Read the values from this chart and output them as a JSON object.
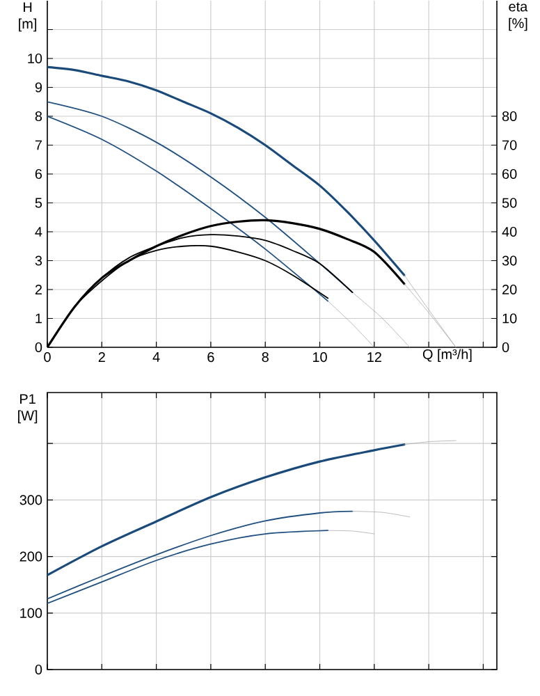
{
  "chart_data": [
    {
      "type": "line",
      "xlabel": "Q [m³/h]",
      "ylabel": "H [m]",
      "y2label": "eta [%]",
      "xlim": [
        0,
        16.5
      ],
      "ylim": [
        0,
        12
      ],
      "y2lim": [
        0,
        120
      ],
      "xticks": [
        0,
        2,
        4,
        6,
        8,
        10,
        12,
        {
          "value": 14,
          "label": null
        },
        {
          "value": 16,
          "label": null
        }
      ],
      "yticks": [
        0,
        1,
        2,
        3,
        4,
        5,
        6,
        7,
        8,
        9,
        10,
        {
          "value": 11,
          "label": null
        }
      ],
      "y2ticks": [
        0,
        10,
        20,
        30,
        40,
        50,
        60,
        70,
        80
      ],
      "grid": true,
      "series": [
        {
          "color": "#1a4a7a",
          "x": [
            0,
            1,
            2,
            3,
            4,
            5,
            6,
            7,
            8,
            9,
            10,
            11,
            12,
            13.1
          ],
          "values": [
            9.7,
            9.6,
            9.4,
            9.2,
            8.9,
            8.5,
            8.1,
            7.6,
            7.0,
            6.3,
            5.6,
            4.7,
            3.7,
            2.5
          ]
        },
        {
          "color": "#1f5080",
          "x": [
            0,
            2,
            4,
            6,
            8,
            10,
            11.2
          ],
          "values": [
            8.5,
            8.0,
            7.1,
            5.9,
            4.5,
            2.9,
            1.9
          ]
        },
        {
          "color": "#1f5080",
          "x": [
            0,
            2,
            4,
            6,
            8,
            10.3
          ],
          "values": [
            8.0,
            7.2,
            6.1,
            4.8,
            3.4,
            1.6
          ]
        },
        {
          "color": "#a8a8a8",
          "x": [
            13.1,
            14,
            15
          ],
          "values": [
            2.5,
            1.3,
            0
          ]
        },
        {
          "color": "#a8a8a8",
          "x": [
            11.2,
            12.3,
            13.3
          ],
          "values": [
            1.9,
            1.0,
            0
          ]
        },
        {
          "color": "#a8a8a8",
          "x": [
            10.3,
            11.2,
            12
          ],
          "values": [
            1.6,
            0.8,
            0
          ]
        },
        {
          "color": "#000000",
          "axis": "y2",
          "x": [
            0,
            1,
            2,
            3,
            4,
            5,
            6,
            7,
            8,
            9,
            10,
            11,
            12,
            13.1
          ],
          "values": [
            0,
            14,
            24,
            30,
            35,
            39,
            42,
            43.5,
            44,
            43,
            41,
            37.5,
            33,
            22
          ]
        },
        {
          "color": "#000000",
          "axis": "y2",
          "x": [
            0,
            1,
            2,
            3,
            4,
            5,
            6,
            7,
            8,
            9,
            10,
            11.2
          ],
          "values": [
            0,
            14,
            24,
            31,
            35,
            38,
            39,
            38.5,
            37,
            33.5,
            29,
            19
          ]
        },
        {
          "color": "#000000",
          "axis": "y2",
          "x": [
            0,
            1,
            2,
            3,
            4,
            5,
            6,
            7,
            8,
            9,
            10.3
          ],
          "values": [
            0,
            14,
            23,
            30,
            33.5,
            35,
            35,
            33,
            30,
            25,
            17
          ]
        },
        {
          "color": "#a8a8a8",
          "axis": "y2",
          "x": [
            13.1,
            14,
            15
          ],
          "values": [
            22,
            12,
            0
          ]
        }
      ]
    },
    {
      "type": "line",
      "ylabel": "P1 [W]",
      "xlim": [
        0,
        16.5
      ],
      "ylim": [
        0,
        490
      ],
      "xticks": [
        0,
        2,
        4,
        6,
        8,
        10,
        12,
        14,
        16
      ],
      "yticks": [
        0,
        100,
        200,
        300,
        {
          "value": 400,
          "label": null
        }
      ],
      "grid": true,
      "tick_labels": "y",
      "series": [
        {
          "color": "#1a4a7a",
          "x": [
            0,
            2,
            4,
            6,
            8,
            10,
            12,
            13.1
          ],
          "values": [
            167,
            218,
            262,
            305,
            340,
            368,
            388,
            398
          ]
        },
        {
          "color": "#1f5080",
          "x": [
            0,
            2,
            4,
            6,
            8,
            10,
            11.2
          ],
          "values": [
            125,
            165,
            203,
            237,
            263,
            277,
            280
          ]
        },
        {
          "color": "#1f5080",
          "x": [
            0,
            2,
            4,
            6,
            8,
            10.3
          ],
          "values": [
            117,
            155,
            193,
            222,
            240,
            246
          ]
        },
        {
          "color": "#a8a8a8",
          "x": [
            13.1,
            14,
            15
          ],
          "values": [
            398,
            403,
            405
          ]
        },
        {
          "color": "#a8a8a8",
          "x": [
            11.2,
            12.3,
            13.3
          ],
          "values": [
            280,
            278,
            270
          ]
        },
        {
          "color": "#a8a8a8",
          "x": [
            10.3,
            11.2,
            12
          ],
          "values": [
            246,
            245,
            240
          ]
        }
      ]
    }
  ]
}
